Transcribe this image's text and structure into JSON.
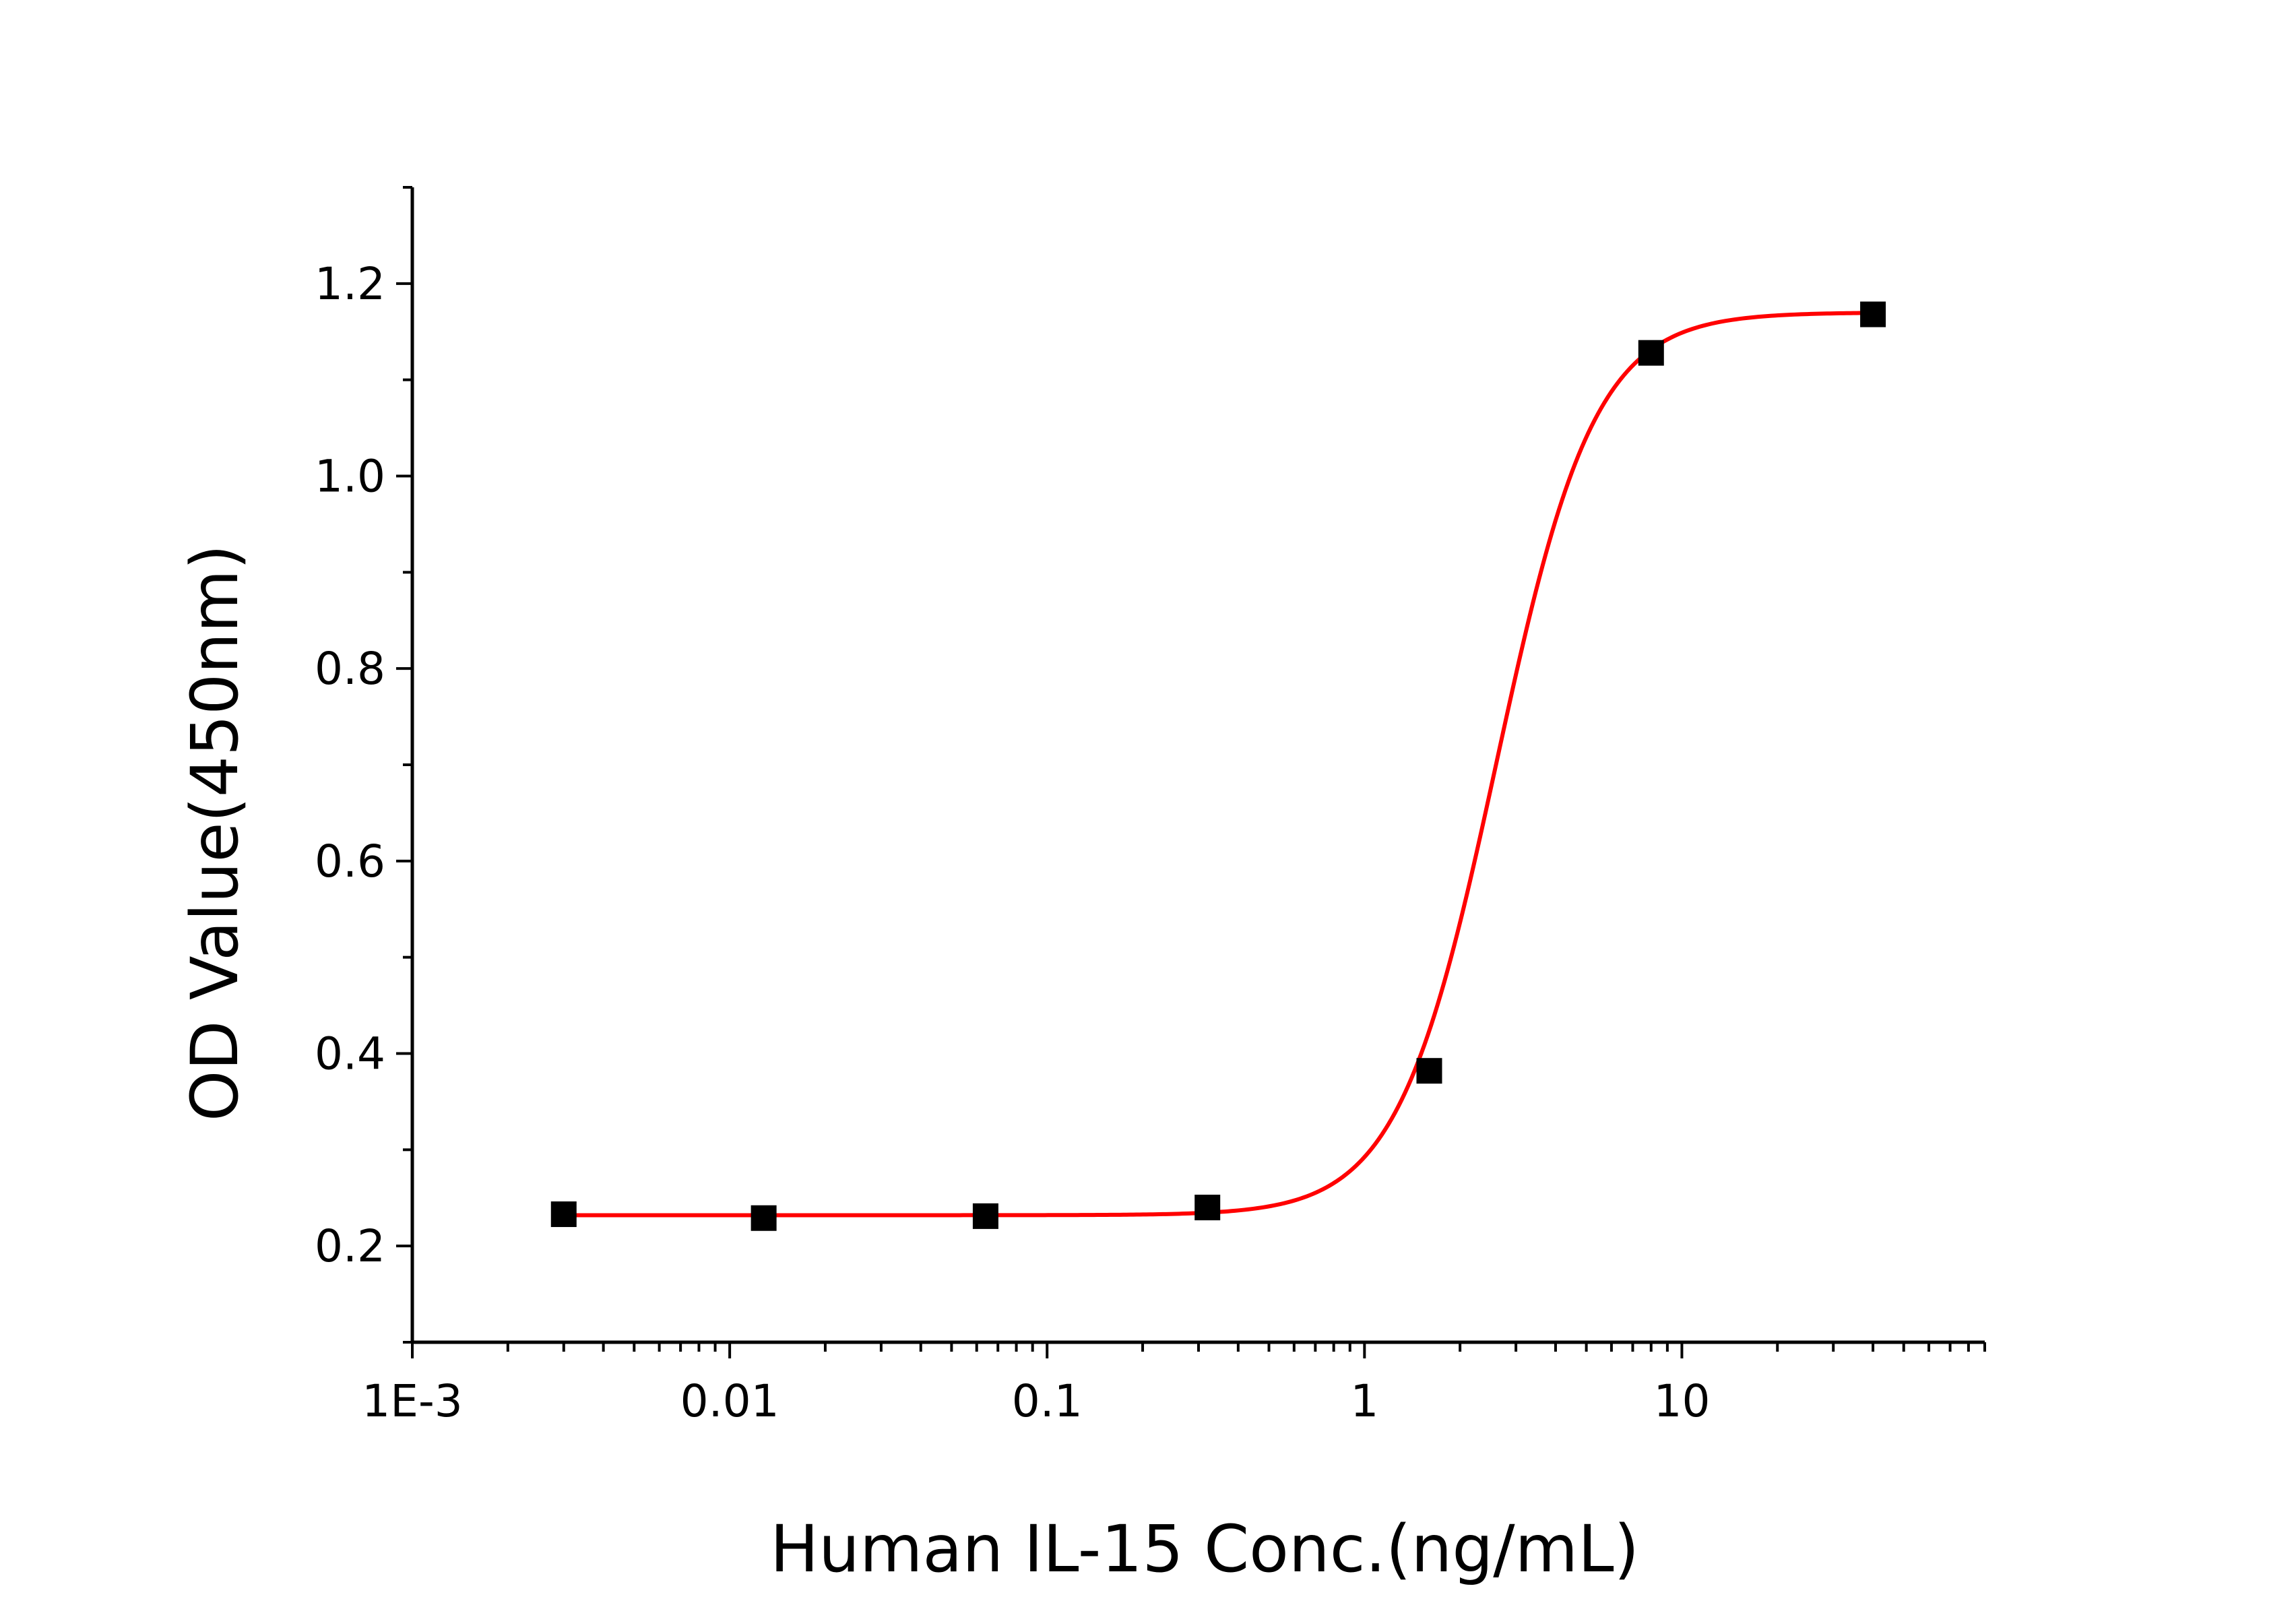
{
  "chart_data": {
    "type": "scatter",
    "title": "",
    "xlabel": "Human IL-15 Conc.(ng/mL)",
    "ylabel": "OD Value(450nm)",
    "x_scale": "log",
    "xlim": [
      0.001,
      90
    ],
    "ylim": [
      0.1,
      1.3
    ],
    "x_ticks": [
      {
        "value": 0.001,
        "label": "1E-3"
      },
      {
        "value": 0.01,
        "label": "0.01"
      },
      {
        "value": 0.1,
        "label": "0.1"
      },
      {
        "value": 1,
        "label": "1"
      },
      {
        "value": 10,
        "label": "10"
      }
    ],
    "y_ticks": [
      {
        "value": 0.2,
        "label": "0.2"
      },
      {
        "value": 0.4,
        "label": "0.4"
      },
      {
        "value": 0.6,
        "label": "0.6"
      },
      {
        "value": 0.8,
        "label": "0.8"
      },
      {
        "value": 1.0,
        "label": "1.0"
      },
      {
        "value": 1.2,
        "label": "1.2"
      }
    ],
    "grid": false,
    "legend": "none",
    "series": [
      {
        "x": [
          0.003,
          0.0128,
          0.064,
          0.32,
          1.6,
          8,
          40
        ],
        "y": [
          0.233,
          0.229,
          0.231,
          0.24,
          0.382,
          1.128,
          1.168
        ],
        "marker": "square",
        "color": "#000000"
      }
    ],
    "fit": {
      "type": "4PL",
      "color": "#ff0000",
      "bottom": 0.232,
      "top": 1.17,
      "ec50": 2.6,
      "hill": 2.8,
      "x_range": [
        0.003,
        40
      ]
    }
  }
}
